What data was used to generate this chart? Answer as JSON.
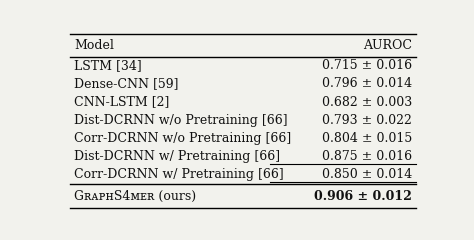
{
  "col_headers": [
    "Model",
    "AUROC"
  ],
  "rows": [
    {
      "model": "LSTM [34]",
      "auroc": "0.715 ± 0.016",
      "underline": false
    },
    {
      "model": "Dense-CNN [59]",
      "auroc": "0.796 ± 0.014",
      "underline": false
    },
    {
      "model": "CNN-LSTM [2]",
      "auroc": "0.682 ± 0.003",
      "underline": false
    },
    {
      "model": "Dist-DCRNN w/o Pretraining [66]",
      "auroc": "0.793 ± 0.022",
      "underline": false
    },
    {
      "model": "Corr-DCRNN w/o Pretraining [66]",
      "auroc": "0.804 ± 0.015",
      "underline": false
    },
    {
      "model": "Dist-DCRNN w/ Pretraining [66]",
      "auroc": "0.875 ± 0.016",
      "underline": true
    },
    {
      "model": "Corr-DCRNN w/ Pretraining [66]",
      "auroc": "0.850 ± 0.014",
      "underline": true
    }
  ],
  "footer": {
    "model": "GʀᴀᴘʜS4ᴍᴇʀ (ours)",
    "auroc": "0.906 ± 0.012"
  },
  "bg_color": "#f2f2ed",
  "text_color": "#111111",
  "font_size": 9.0
}
